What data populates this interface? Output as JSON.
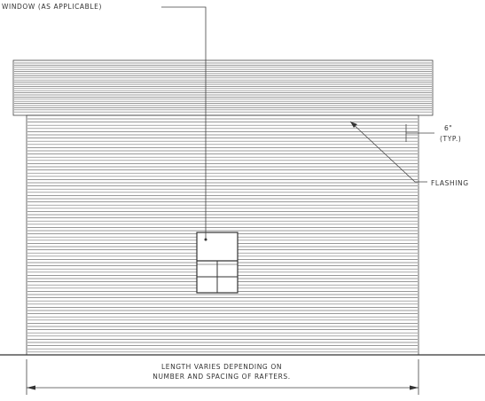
{
  "labels": {
    "window": "WINDOW (AS APPLICABLE)",
    "overhang": "6\"",
    "typical": "(TYP.)",
    "flashing": "FLASHING",
    "length_line_1": "LENGTH VARIES DEPENDING ON",
    "length_line_2": "NUMBER AND SPACING OF RAFTERS."
  }
}
